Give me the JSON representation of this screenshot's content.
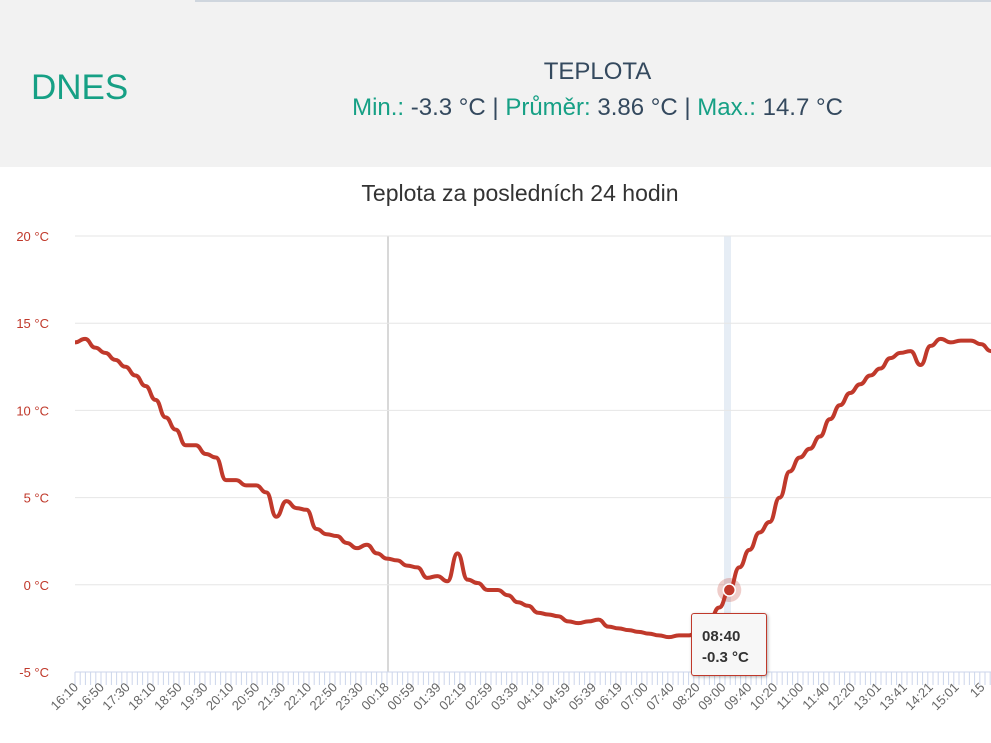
{
  "header": {
    "day_label": "DNES",
    "title": "TEPLOTA",
    "min_label": "Min.:",
    "min_value": "-3.3 °C",
    "avg_label": "Průměr:",
    "avg_value": "3.86 °C",
    "max_label": "Max.:",
    "max_value": "14.7 °C",
    "sep": "|"
  },
  "chart_data": {
    "type": "line",
    "title": "Teplota za posledních 24 hodin",
    "ylabel": "",
    "xlabel": "",
    "ylim": [
      -5,
      20
    ],
    "yticks": [
      "20 °C",
      "15 °C",
      "10 °C",
      "5 °C",
      "0 °C",
      "-5 °C"
    ],
    "ytick_values": [
      20,
      15,
      10,
      5,
      0,
      -5
    ],
    "xticks": [
      "16:10",
      "16:50",
      "17:30",
      "18:10",
      "18:50",
      "19:30",
      "20:10",
      "20:50",
      "21:30",
      "22:10",
      "22:50",
      "23:30",
      "00:18",
      "00:59",
      "01:39",
      "02:19",
      "02:59",
      "03:39",
      "04:19",
      "04:59",
      "05:39",
      "06:19",
      "07:00",
      "07:40",
      "08:20",
      "09:00",
      "09:40",
      "10:20",
      "11:00",
      "11:40",
      "12:20",
      "13:01",
      "13:41",
      "14:21",
      "15:01",
      "15"
    ],
    "series": [
      {
        "name": "Teplota",
        "color": "#c0392b",
        "values": [
          13.9,
          14.1,
          13.6,
          13.3,
          12.9,
          12.5,
          12.0,
          11.4,
          10.6,
          9.6,
          8.9,
          8.0,
          8.0,
          7.5,
          7.3,
          6.0,
          6.0,
          5.7,
          5.7,
          5.3,
          3.9,
          4.8,
          4.4,
          4.3,
          3.2,
          2.9,
          2.8,
          2.4,
          2.1,
          2.3,
          1.8,
          1.5,
          1.4,
          1.1,
          1.0,
          0.4,
          0.5,
          0.2,
          1.8,
          0.3,
          0.1,
          -0.3,
          -0.3,
          -0.6,
          -1.0,
          -1.2,
          -1.6,
          -1.7,
          -1.8,
          -2.1,
          -2.2,
          -2.1,
          -2.0,
          -2.4,
          -2.5,
          -2.6,
          -2.7,
          -2.8,
          -2.9,
          -3.0,
          -2.9,
          -2.9,
          -2.6,
          -2.1,
          -1.3,
          -0.3,
          1.0,
          2.0,
          3.0,
          3.6,
          5.0,
          6.5,
          7.3,
          7.8,
          8.5,
          9.5,
          10.3,
          11.0,
          11.5,
          12.0,
          12.4,
          13.0,
          13.3,
          13.4,
          12.6,
          13.7,
          14.1,
          13.9,
          14.0,
          14.0,
          13.8,
          13.4
        ]
      }
    ],
    "tooltip": {
      "time": "08:40",
      "value": "-0.3 °C",
      "index": 65
    },
    "grid": true
  }
}
